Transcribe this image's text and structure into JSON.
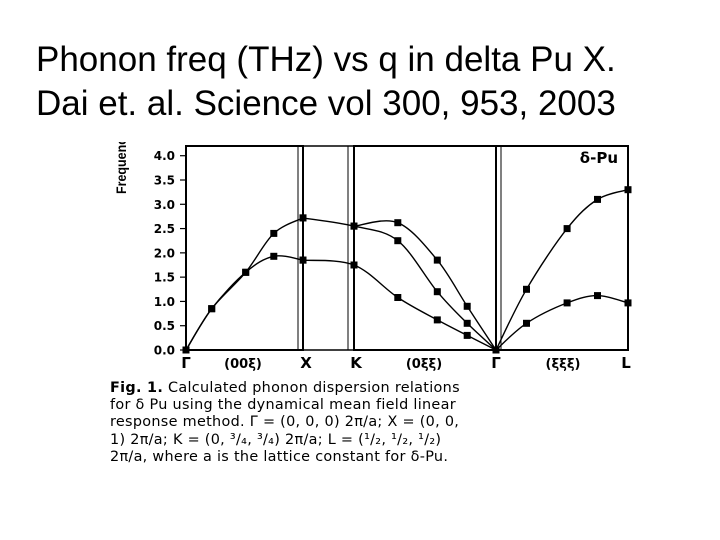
{
  "slide": {
    "title_line1": "Phonon freq (THz) vs q in delta Pu X.",
    "title_line2": "Dai et. al. Science vol 300, 953, 2003"
  },
  "caption": {
    "fig_label": "Fig. 1.",
    "line1": "Calculated phonon dispersion relations",
    "line2": "for δ Pu using the dynamical mean field linear",
    "line3": "response method. Γ = (0, 0, 0) 2π/a; X = (0, 0,",
    "line4": "1) 2π/a; K = (0, ³/₄, ³/₄) 2π/a; L = (¹/₂, ¹/₂, ¹/₂)",
    "line5": "2π/a, where a is the lattice constant for δ-Pu."
  },
  "chart_data": {
    "type": "line",
    "ylabel": "Frequency, THz",
    "ylim": [
      0,
      4.2
    ],
    "yticks": [
      "0.0",
      "0.5",
      "1.0",
      "1.5",
      "2.0",
      "2.5",
      "3.0",
      "3.5",
      "4.0"
    ],
    "x_point_labels": [
      "Γ",
      "X",
      "K",
      "Γ",
      "L"
    ],
    "x_segment_labels": [
      "(00ξ)",
      "(0ξξ)",
      "(ξξξ)"
    ],
    "x_positions": [
      0,
      1,
      1.44,
      2.77,
      3.42
    ],
    "inset_label": "δ-Pu",
    "legend": "none",
    "grid": false,
    "series": [
      {
        "x": [
          0,
          0.22,
          0.51,
          0.75,
          1.0
        ],
        "values": [
          0,
          0.85,
          1.6,
          1.93,
          1.85
        ]
      },
      {
        "x": [
          0,
          0.22,
          0.51,
          0.75,
          1.0
        ],
        "values": [
          0,
          0.85,
          1.6,
          2.4,
          2.72
        ]
      },
      {
        "x": [
          1.0,
          1.44,
          1.85,
          2.22,
          2.5,
          2.77
        ],
        "values": [
          1.85,
          1.75,
          1.08,
          0.62,
          0.3,
          0
        ]
      },
      {
        "x": [
          1.0,
          1.44,
          1.85,
          2.22,
          2.5,
          2.77
        ],
        "values": [
          2.72,
          2.55,
          2.25,
          1.2,
          0.55,
          0
        ]
      },
      {
        "x": [
          1.44,
          1.85,
          2.22,
          2.5,
          2.77
        ],
        "values": [
          2.55,
          2.62,
          1.85,
          0.9,
          0
        ]
      },
      {
        "x": [
          2.77,
          2.92,
          3.12,
          3.27,
          3.42
        ],
        "values": [
          0,
          0.55,
          0.97,
          1.12,
          0.97
        ]
      },
      {
        "x": [
          2.77,
          2.92,
          3.12,
          3.27,
          3.42
        ],
        "values": [
          0,
          1.25,
          2.5,
          3.1,
          3.3
        ]
      }
    ]
  }
}
